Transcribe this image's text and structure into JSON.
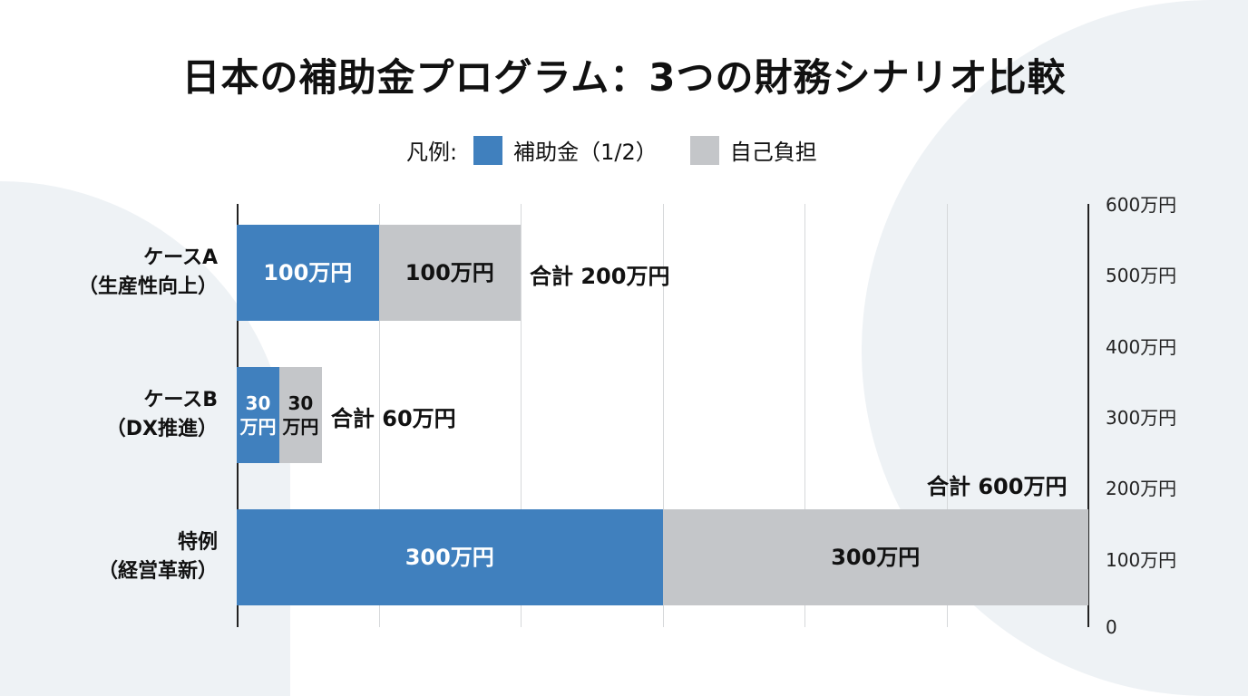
{
  "title": "日本の補助金プログラム：3つの財務シナリオ比較",
  "legend": {
    "label": "凡例:",
    "items": [
      {
        "name": "補助金（1/2）",
        "color": "#4080BE"
      },
      {
        "name": "自己負担",
        "color": "#C4C6C9"
      }
    ]
  },
  "chart_data": {
    "type": "bar",
    "orientation": "horizontal",
    "stacked": true,
    "unit": "万円",
    "xlim": [
      0,
      600
    ],
    "grid": true,
    "legend_position": "top",
    "categories": [
      {
        "line1": "ケースA",
        "line2": "（生産性向上）"
      },
      {
        "line1": "ケースB",
        "line2": "（DX推進）"
      },
      {
        "line1": "特例",
        "line2": "（経営革新）"
      }
    ],
    "series": [
      {
        "name": "補助金（1/2）",
        "values": [
          100,
          30,
          300
        ],
        "labels": [
          "100万円",
          "30\n万円",
          "300万円"
        ],
        "color": "#4080BE",
        "label_color": "#ffffff"
      },
      {
        "name": "自己負担",
        "values": [
          100,
          30,
          300
        ],
        "labels": [
          "100万円",
          "30\n万円",
          "300万円"
        ],
        "color": "#C4C6C9",
        "label_color": "#111111"
      }
    ],
    "totals": [
      "合計 200万円",
      "合計 60万円",
      "合計 600万円"
    ],
    "right_axis_ticks": [
      "600万円",
      "500万円",
      "400万円",
      "300万円",
      "200万円",
      "100万円",
      "0"
    ]
  }
}
